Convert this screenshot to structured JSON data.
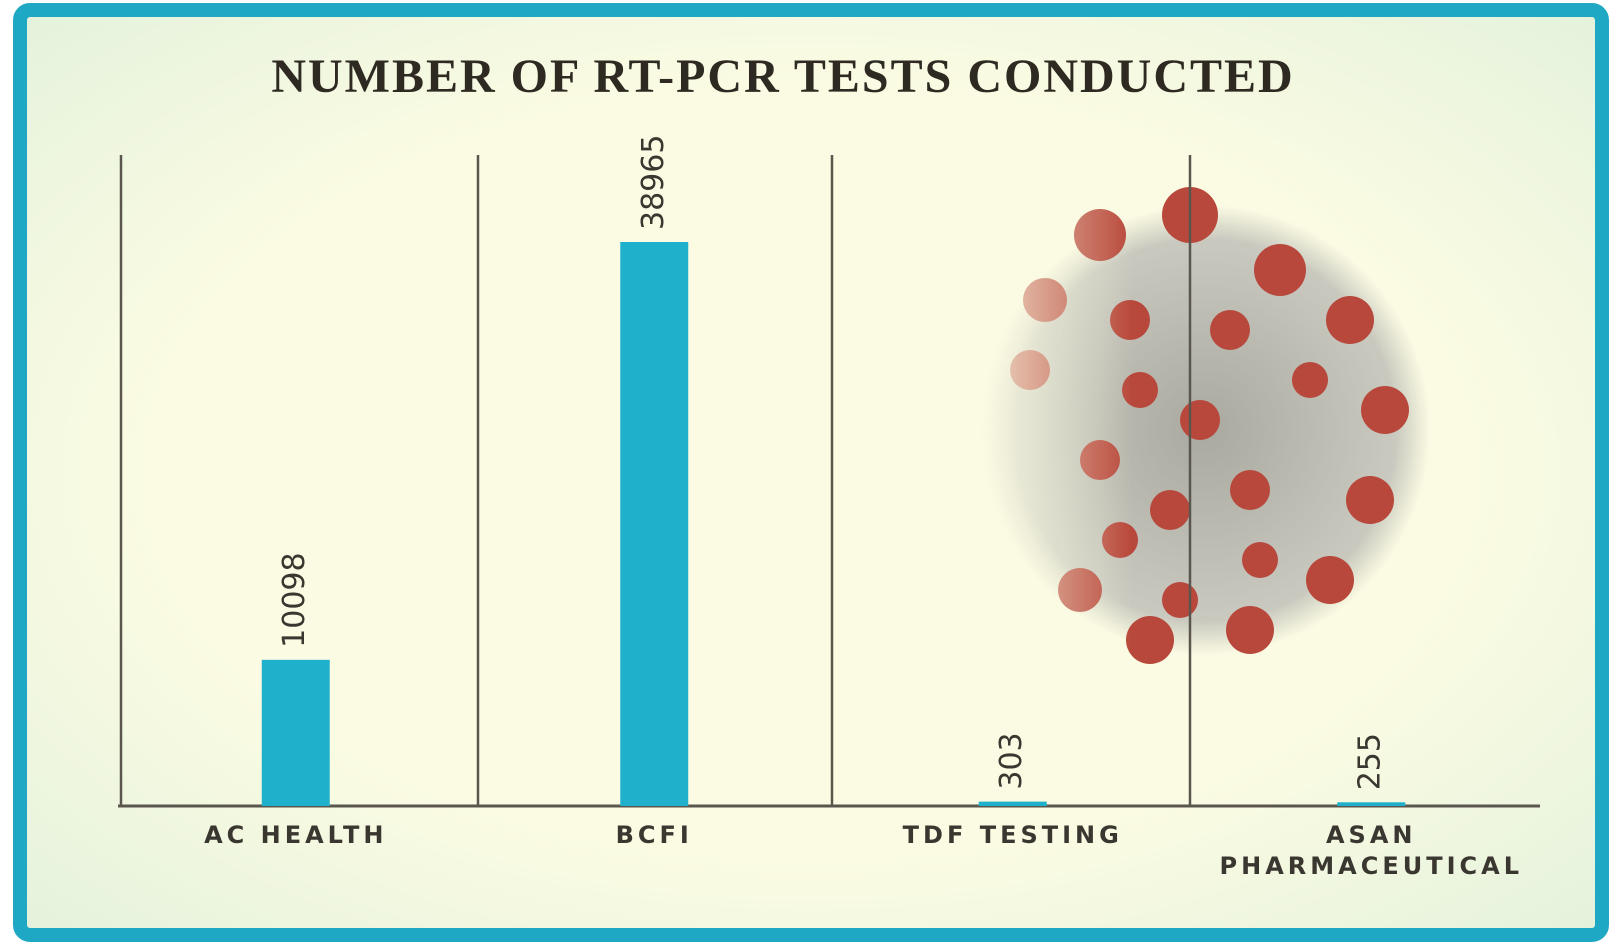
{
  "chart_data": {
    "type": "bar",
    "title": "NUMBER OF RT-PCR TESTS CONDUCTED",
    "categories": [
      "AC HEALTH",
      "BCFI",
      "TDF TESTING",
      "ASAN\nPHARMACEUTICAL"
    ],
    "values": [
      10098,
      38965,
      303,
      255
    ],
    "color": "#1fb1cb"
  }
}
